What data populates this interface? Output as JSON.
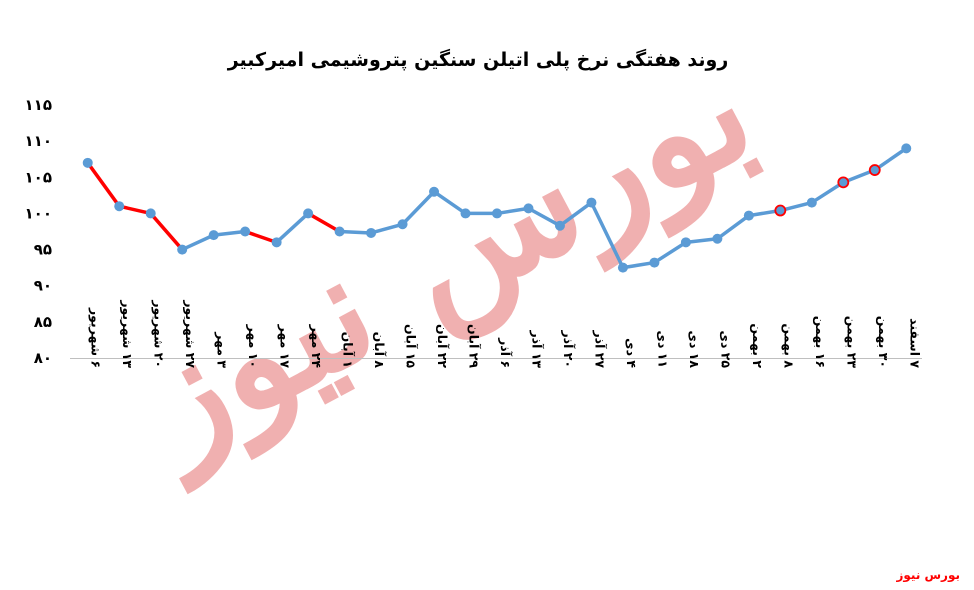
{
  "chart_data": {
    "type": "line",
    "title": "روند هفتگی نرخ پلی اتیلن سنگین پتروشیمی امیرکبیر",
    "xlabel": "",
    "ylabel": "",
    "ylim": [
      80,
      115
    ],
    "yticks": [
      "۱۱۵",
      "۱۱۰",
      "۱۰۵",
      "۱۰۰",
      "۹۵",
      "۹۰",
      "۸۵",
      "۸۰"
    ],
    "ytick_values": [
      115,
      110,
      105,
      100,
      95,
      90,
      85,
      80
    ],
    "grid": false,
    "legend": "none",
    "categories": [
      "۶ شهریور",
      "۱۳ شهریور",
      "۲۰ شهریور",
      "۲۷ شهریور",
      "۳ مهر",
      "۱۰ مهر",
      "۱۷ مهر",
      "۲۴ مهر",
      "۱ آبان",
      "۸ آبان",
      "۱۵ آبان",
      "۲۲ آبان",
      "۲۹ آبان",
      "۶ آذر",
      "۱۳ آذر",
      "۲۰ آذر",
      "۲۷ آذر",
      "۴ دی",
      "۱۱ دی",
      "۱۸ دی",
      "۲۵ دی",
      "۲ بهمن",
      "۸ بهمن",
      "۱۶ بهمن",
      "۲۳ بهمن",
      "۳۰ بهمن",
      "۷ اسفند"
    ],
    "values": [
      107,
      101,
      100,
      95,
      97,
      97.5,
      96,
      100,
      97.5,
      97.3,
      98.5,
      103,
      100,
      100,
      100.7,
      98.3,
      101.5,
      92.5,
      93.2,
      96,
      96.5,
      99.7,
      100.4,
      101.5,
      104.3,
      106,
      109
    ],
    "segment_colors": [
      "#ff0000",
      "#ff0000",
      "#ff0000",
      "#5b9bd5",
      "#5b9bd5",
      "#ff0000",
      "#5b9bd5",
      "#ff0000",
      "#5b9bd5",
      "#5b9bd5",
      "#5b9bd5",
      "#5b9bd5",
      "#5b9bd5",
      "#5b9bd5",
      "#5b9bd5",
      "#5b9bd5",
      "#5b9bd5",
      "#5b9bd5",
      "#5b9bd5",
      "#5b9bd5",
      "#5b9bd5",
      "#5b9bd5",
      "#5b9bd5",
      "#5b9bd5",
      "#5b9bd5",
      "#5b9bd5"
    ],
    "highlighted_points": [
      22,
      24,
      25
    ],
    "line_color": "#5b9bd5",
    "highlight_color": "#ff0000"
  },
  "watermark": "بورس نیوز",
  "brand": "بورس نیوز"
}
